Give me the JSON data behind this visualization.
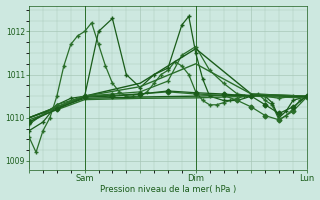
{
  "background_color": "#cde8e0",
  "plot_bg_color": "#cde8e0",
  "grid_color": "#a8c8b8",
  "line_color_dark": "#1a5c1a",
  "ylabel": "Pression niveau de la mer( hPa )",
  "xtick_labels": [
    "",
    "Sam",
    "",
    "Dim",
    "",
    "Lun"
  ],
  "xtick_positions": [
    0,
    24,
    48,
    72,
    96,
    120
  ],
  "ylim": [
    1008.8,
    1012.6
  ],
  "yticks": [
    1009,
    1010,
    1011,
    1012
  ],
  "total_hours": 120,
  "series": [
    {
      "x": [
        0,
        3,
        6,
        9,
        12,
        15,
        18,
        21,
        24,
        27,
        30,
        33,
        36,
        39,
        42,
        45,
        48,
        51,
        54,
        57,
        60,
        63,
        66,
        69,
        72,
        75,
        78,
        81,
        84,
        87,
        90,
        93,
        96,
        99,
        102,
        105,
        108,
        111,
        114,
        117,
        120
      ],
      "y": [
        1009.55,
        1009.2,
        1009.7,
        1010.0,
        1010.5,
        1011.2,
        1011.7,
        1011.9,
        1012.0,
        1012.2,
        1011.7,
        1011.2,
        1010.8,
        1010.6,
        1010.5,
        1010.5,
        1010.5,
        1010.6,
        1010.8,
        1011.0,
        1011.1,
        1011.3,
        1011.2,
        1011.0,
        1010.6,
        1010.4,
        1010.3,
        1010.3,
        1010.35,
        1010.4,
        1010.45,
        1010.5,
        1010.5,
        1010.55,
        1010.4,
        1010.3,
        1009.95,
        1010.05,
        1010.2,
        1010.4,
        1010.5
      ],
      "marker": "+",
      "lw": 0.9,
      "color": "#2a6e2a",
      "ms": 3.5
    },
    {
      "x": [
        0,
        6,
        12,
        18,
        24,
        30,
        36,
        42,
        48,
        54,
        60,
        66,
        69,
        72,
        75,
        78,
        84,
        90,
        96,
        102,
        105,
        108,
        111,
        114,
        120
      ],
      "y": [
        1009.7,
        1009.9,
        1010.3,
        1010.45,
        1010.5,
        1012.0,
        1012.3,
        1011.0,
        1010.7,
        1011.0,
        1011.15,
        1012.15,
        1012.35,
        1011.5,
        1010.9,
        1010.5,
        1010.4,
        1010.4,
        1010.5,
        1010.5,
        1010.35,
        1010.0,
        1010.15,
        1010.4,
        1010.5
      ],
      "marker": "+",
      "lw": 0.9,
      "color": "#1a5c1a",
      "ms": 3.5
    },
    {
      "x": [
        0,
        12,
        24,
        36,
        48,
        60,
        66,
        72,
        78,
        84,
        90,
        96,
        102,
        108,
        114,
        120
      ],
      "y": [
        1009.85,
        1010.3,
        1010.5,
        1010.55,
        1010.6,
        1010.85,
        1011.45,
        1011.65,
        1011.1,
        1010.8,
        1010.55,
        1010.5,
        1010.5,
        1010.45,
        1010.5,
        1010.5
      ],
      "marker": "+",
      "lw": 0.9,
      "color": "#2a6e2a",
      "ms": 3.0
    },
    {
      "x": [
        0,
        24,
        48,
        72,
        96,
        120
      ],
      "y": [
        1010.0,
        1010.5,
        1010.8,
        1011.6,
        1010.55,
        1010.5
      ],
      "marker": null,
      "lw": 1.0,
      "color": "#1a5c1a"
    },
    {
      "x": [
        0,
        24,
        48,
        72,
        96,
        120
      ],
      "y": [
        1010.0,
        1010.5,
        1010.72,
        1011.25,
        1010.55,
        1010.5
      ],
      "marker": null,
      "lw": 1.0,
      "color": "#2a6e2a"
    },
    {
      "x": [
        0,
        24,
        48,
        72,
        84,
        96,
        108,
        120
      ],
      "y": [
        1010.0,
        1010.45,
        1010.48,
        1010.5,
        1010.52,
        1010.52,
        1010.5,
        1010.48
      ],
      "marker": null,
      "lw": 1.0,
      "color": "#1a5c1a"
    },
    {
      "x": [
        0,
        24,
        48,
        72,
        84,
        96,
        108,
        120
      ],
      "y": [
        1009.95,
        1010.42,
        1010.45,
        1010.46,
        1010.48,
        1010.5,
        1010.48,
        1010.46
      ],
      "marker": null,
      "lw": 1.0,
      "color": "#2a6e2a"
    },
    {
      "x": [
        0,
        12,
        24,
        36,
        48,
        60,
        72,
        84,
        90,
        96,
        102,
        108,
        114,
        120
      ],
      "y": [
        1009.9,
        1010.25,
        1010.5,
        1010.52,
        1010.55,
        1010.6,
        1010.55,
        1010.52,
        1010.4,
        1010.25,
        1010.05,
        1009.95,
        1010.15,
        1010.48
      ],
      "marker": "D",
      "lw": 0.9,
      "color": "#2a6e2a",
      "ms": 2.5
    },
    {
      "x": [
        0,
        12,
        24,
        36,
        48,
        60,
        72,
        84,
        96,
        102,
        108,
        114,
        120
      ],
      "y": [
        1009.9,
        1010.2,
        1010.48,
        1010.5,
        1010.55,
        1010.62,
        1010.58,
        1010.55,
        1010.5,
        1010.3,
        1010.1,
        1010.25,
        1010.5
      ],
      "marker": "D",
      "lw": 0.9,
      "color": "#1a5c1a",
      "ms": 2.5
    }
  ],
  "vlines": [
    24,
    72
  ],
  "vline_color": "#2a6e2a",
  "vline_lw": 0.7
}
